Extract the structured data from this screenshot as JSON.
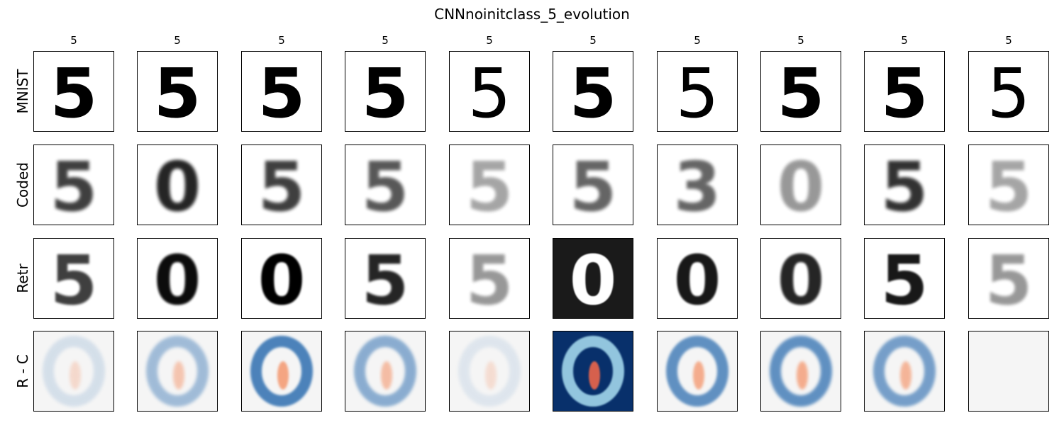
{
  "figure": {
    "title": "CNNnoinitclass_5_evolution",
    "column_labels": [
      "5",
      "5",
      "5",
      "5",
      "5",
      "5",
      "5",
      "5",
      "5",
      "5"
    ],
    "row_labels": [
      "MNIST",
      "Coded",
      "Retr",
      "R - C"
    ]
  },
  "colors": {
    "gray_background": "#ffffff",
    "gray_ink": "#000000",
    "diff_background": "#f5f5f5",
    "diff_blue_dark": "#08306b",
    "diff_blue": "#2166ac",
    "diff_blue_light": "#92c5de",
    "diff_red": "#d6604d",
    "diff_red_light": "#f4a582"
  },
  "cells": {
    "digit_5": "5",
    "digit_0": "0",
    "digit_3": "3"
  }
}
